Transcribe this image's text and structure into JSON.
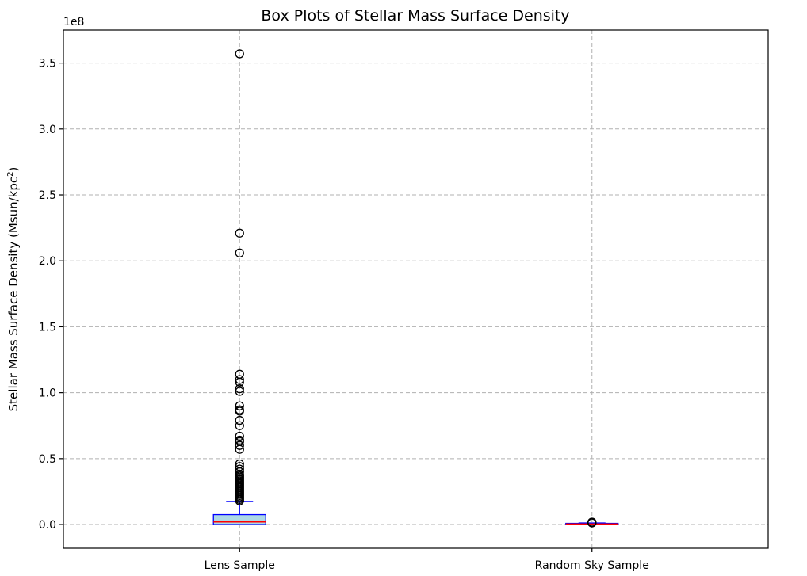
{
  "chart_data": {
    "type": "box",
    "title": "Box Plots of Stellar Mass Surface Density",
    "ylabel_base": "Stellar Mass Surface Density (Msun/kpc",
    "ylabel_sup": "2",
    "ylabel_end": ")",
    "y_offset_label": "1e8",
    "ylim": [
      -0.18,
      3.75
    ],
    "yticks": [
      0.0,
      0.5,
      1.0,
      1.5,
      2.0,
      2.5,
      3.0,
      3.5
    ],
    "ytick_labels": [
      "0.0",
      "0.5",
      "1.0",
      "1.5",
      "2.0",
      "2.5",
      "3.0",
      "3.5"
    ],
    "categories": [
      "Lens Sample",
      "Random Sky Sample"
    ],
    "grid": true,
    "colors": {
      "box_fill": "#add8e6",
      "box_edge": "#0000ff",
      "median": "#ff0000",
      "flier": "#000000",
      "grid": "#b0b0b0"
    },
    "boxes": [
      {
        "name": "Lens Sample",
        "q1": 0.0,
        "median": 0.02,
        "q3": 0.075,
        "whisker_low": 0.0,
        "whisker_high": 0.175,
        "fliers": [
          3.57,
          2.21,
          2.06,
          1.14,
          1.1,
          1.08,
          1.03,
          1.01,
          0.9,
          0.87,
          0.86,
          0.79,
          0.75,
          0.67,
          0.64,
          0.63,
          0.6,
          0.57,
          0.46,
          0.44,
          0.42,
          0.4,
          0.38,
          0.37,
          0.36,
          0.35,
          0.34,
          0.33,
          0.32,
          0.31,
          0.3,
          0.29,
          0.28,
          0.27,
          0.26,
          0.25,
          0.24,
          0.23,
          0.22,
          0.21,
          0.2,
          0.19,
          0.18
        ]
      },
      {
        "name": "Random Sky Sample",
        "q1": 0.0,
        "median": 0.004,
        "q3": 0.008,
        "whisker_low": 0.0,
        "whisker_high": 0.012,
        "fliers": [
          0.012,
          0.014,
          0.016,
          0.018
        ]
      }
    ]
  }
}
